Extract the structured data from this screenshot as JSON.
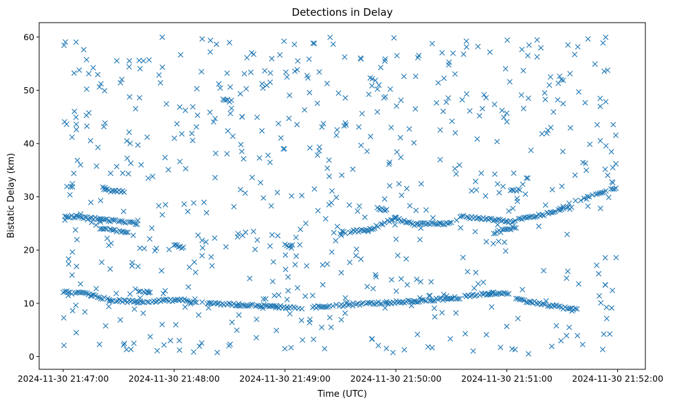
{
  "chart_data": {
    "type": "scatter",
    "title": "Detections in Delay",
    "xlabel": "Time (UTC)",
    "ylabel": "Bistatic Delay (km)",
    "x_range": [
      "2024-11-30 21:46:47",
      "2024-11-30 21:52:15"
    ],
    "ylim": [
      -2.4,
      62.7
    ],
    "x_ticks": [
      "2024-11-30 21:47:00",
      "2024-11-30 21:48:00",
      "2024-11-30 21:49:00",
      "2024-11-30 21:50:00",
      "2024-11-30 21:51:00",
      "2024-11-30 21:52:00"
    ],
    "y_ticks": [
      0,
      10,
      20,
      30,
      40,
      50,
      60
    ],
    "marker": "x",
    "marker_color": "#1f77b4",
    "grid": false,
    "legend": "none",
    "tracks": [
      {
        "points": [
          [
            "2024-11-30 21:47:00",
            12.1
          ],
          [
            "2024-11-30 21:47:12",
            11.8
          ],
          [
            "2024-11-30 21:47:25",
            10.6
          ],
          [
            "2024-11-30 21:47:40",
            10.3
          ],
          [
            "2024-11-30 21:48:00",
            10.6
          ],
          [
            "2024-11-30 21:48:12",
            10.4
          ]
        ]
      },
      {
        "points": [
          [
            "2024-11-30 21:48:18",
            10.0
          ],
          [
            "2024-11-30 21:48:35",
            9.7
          ],
          [
            "2024-11-30 21:48:55",
            9.4
          ],
          [
            "2024-11-30 21:49:10",
            8.9
          ]
        ]
      },
      {
        "points": [
          [
            "2024-11-30 21:49:15",
            9.2
          ],
          [
            "2024-11-30 21:49:35",
            9.8
          ],
          [
            "2024-11-30 21:49:55",
            10.1
          ],
          [
            "2024-11-30 21:50:10",
            10.4
          ],
          [
            "2024-11-30 21:50:30",
            10.9
          ],
          [
            "2024-11-30 21:50:50",
            11.8
          ],
          [
            "2024-11-30 21:51:02",
            12.0
          ]
        ]
      },
      {
        "points": [
          [
            "2024-11-30 21:51:05",
            10.8
          ],
          [
            "2024-11-30 21:51:25",
            9.5
          ],
          [
            "2024-11-30 21:51:38",
            8.8
          ]
        ]
      },
      {
        "points": [
          [
            "2024-11-30 21:47:00",
            26.4
          ],
          [
            "2024-11-30 21:47:20",
            25.8
          ],
          [
            "2024-11-30 21:47:40",
            25.0
          ]
        ]
      },
      {
        "points": [
          [
            "2024-11-30 21:47:02",
            32.0
          ],
          [
            "2024-11-30 21:47:05",
            31.8
          ]
        ]
      },
      {
        "points": [
          [
            "2024-11-30 21:47:22",
            31.3
          ],
          [
            "2024-11-30 21:47:33",
            31.0
          ]
        ]
      },
      {
        "points": [
          [
            "2024-11-30 21:47:20",
            24.0
          ],
          [
            "2024-11-30 21:47:35",
            23.3
          ]
        ]
      },
      {
        "points": [
          [
            "2024-11-30 21:48:00",
            20.8
          ],
          [
            "2024-11-30 21:48:05",
            20.5
          ]
        ]
      },
      {
        "points": [
          [
            "2024-11-30 21:47:40",
            12.2
          ],
          [
            "2024-11-30 21:47:47",
            12.0
          ]
        ]
      },
      {
        "points": [
          [
            "2024-11-30 21:48:27",
            48.0
          ],
          [
            "2024-11-30 21:48:31",
            48.0
          ]
        ]
      },
      {
        "points": [
          [
            "2024-11-30 21:49:00",
            20.8
          ],
          [
            "2024-11-30 21:49:04",
            20.7
          ]
        ]
      },
      {
        "points": [
          [
            "2024-11-30 21:49:30",
            23.3
          ],
          [
            "2024-11-30 21:49:45",
            23.7
          ],
          [
            "2024-11-30 21:50:00",
            26.0
          ],
          [
            "2024-11-30 21:50:10",
            24.8
          ],
          [
            "2024-11-30 21:50:30",
            25.0
          ]
        ]
      },
      {
        "points": [
          [
            "2024-11-30 21:49:50",
            27.8
          ],
          [
            "2024-11-30 21:49:55",
            27.6
          ]
        ]
      },
      {
        "points": [
          [
            "2024-11-30 21:50:33",
            26.3
          ],
          [
            "2024-11-30 21:50:50",
            25.8
          ],
          [
            "2024-11-30 21:51:00",
            25.5
          ]
        ]
      },
      {
        "points": [
          [
            "2024-11-30 21:50:53",
            23.2
          ],
          [
            "2024-11-30 21:51:05",
            24.3
          ]
        ]
      },
      {
        "points": [
          [
            "2024-11-30 21:51:00",
            25.2
          ],
          [
            "2024-11-30 21:51:20",
            26.7
          ],
          [
            "2024-11-30 21:51:35",
            28.0
          ]
        ]
      },
      {
        "points": [
          [
            "2024-11-30 21:51:40",
            29.5
          ],
          [
            "2024-11-30 21:52:00",
            31.8
          ]
        ]
      },
      {
        "points": [
          [
            "2024-11-30 21:51:02",
            31.4
          ],
          [
            "2024-11-30 21:51:07",
            31.3
          ]
        ]
      }
    ],
    "noise_detections": "approximately 650 scattered detections spread uniformly over the full time span with bistatic delays between 0 and 60 km"
  }
}
